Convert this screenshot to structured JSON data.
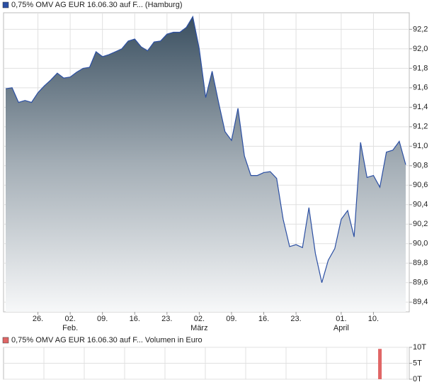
{
  "chart_data": [
    {
      "type": "area",
      "legend": "0,75% OMV AG EUR 16.06.30 auf F... (Hamburg)",
      "color": "#2b4fa3",
      "values": [
        91.59,
        91.6,
        91.45,
        91.47,
        91.45,
        91.55,
        91.62,
        91.68,
        91.75,
        91.7,
        91.71,
        91.76,
        91.8,
        91.81,
        91.97,
        91.92,
        91.94,
        91.97,
        92.0,
        92.08,
        92.1,
        92.02,
        91.98,
        92.07,
        92.08,
        92.15,
        92.17,
        92.17,
        92.22,
        92.33,
        92.0,
        91.5,
        91.77,
        91.45,
        91.15,
        91.06,
        91.39,
        90.9,
        90.7,
        90.7,
        90.73,
        90.74,
        90.67,
        90.25,
        89.97,
        89.99,
        89.96,
        90.37,
        89.9,
        89.6,
        89.83,
        89.95,
        90.25,
        90.34,
        90.07,
        91.04,
        90.68,
        90.7,
        90.58,
        90.94,
        90.96,
        91.05,
        90.81
      ],
      "ylim": [
        89.3,
        92.37
      ],
      "yticks": [
        {
          "value": 92.2,
          "label": "92,2"
        },
        {
          "value": 92.0,
          "label": "92,0"
        },
        {
          "value": 91.8,
          "label": "91,8"
        },
        {
          "value": 91.6,
          "label": "91,6"
        },
        {
          "value": 91.4,
          "label": "91,4"
        },
        {
          "value": 91.2,
          "label": "91,2"
        },
        {
          "value": 91.0,
          "label": "91,0"
        },
        {
          "value": 90.8,
          "label": "90,8"
        },
        {
          "value": 90.6,
          "label": "90,6"
        },
        {
          "value": 90.4,
          "label": "90,4"
        },
        {
          "value": 90.2,
          "label": "90,2"
        },
        {
          "value": 90.0,
          "label": "90,0"
        },
        {
          "value": 89.8,
          "label": "89,8"
        },
        {
          "value": 89.6,
          "label": "89,6"
        },
        {
          "value": 89.4,
          "label": "89,4"
        }
      ],
      "xticks": [
        {
          "value": 5,
          "label": "26."
        },
        {
          "value": 10,
          "label": "02."
        },
        {
          "value": 15,
          "label": "09."
        },
        {
          "value": 20,
          "label": "16."
        },
        {
          "value": 25,
          "label": "23."
        },
        {
          "value": 30,
          "label": "02."
        },
        {
          "value": 35,
          "label": "09."
        },
        {
          "value": 40,
          "label": "16."
        },
        {
          "value": 45,
          "label": "23."
        },
        {
          "value": 52,
          "label": "01."
        },
        {
          "value": 57,
          "label": "10."
        }
      ],
      "month_labels": [
        {
          "value": 10,
          "label": "Feb."
        },
        {
          "value": 30,
          "label": "März"
        },
        {
          "value": 52,
          "label": "April"
        }
      ],
      "grid": true
    },
    {
      "type": "bar",
      "legend": "0,75% OMV AG EUR 16.06.30 auf F... Volumen in Euro",
      "color": "#e06666",
      "values": [
        0,
        0,
        0,
        0,
        0,
        0,
        0,
        0,
        0,
        0,
        0,
        0,
        0,
        0,
        0,
        0,
        0,
        0,
        0,
        0,
        0,
        0,
        0,
        0,
        0,
        0,
        0,
        0,
        0,
        0,
        0,
        0,
        0,
        0,
        0,
        0,
        0,
        0,
        0,
        0,
        0,
        0,
        0,
        0,
        0,
        0,
        0,
        0,
        0,
        0,
        0,
        0,
        0,
        0,
        0,
        0,
        0,
        0,
        9500,
        0,
        0,
        0,
        0
      ],
      "ylim": [
        0,
        10000
      ],
      "yticks": [
        {
          "value": 10000,
          "label": "10T"
        },
        {
          "value": 5000,
          "label": "5T"
        },
        {
          "value": 0,
          "label": "0T"
        }
      ],
      "grid": true
    }
  ]
}
